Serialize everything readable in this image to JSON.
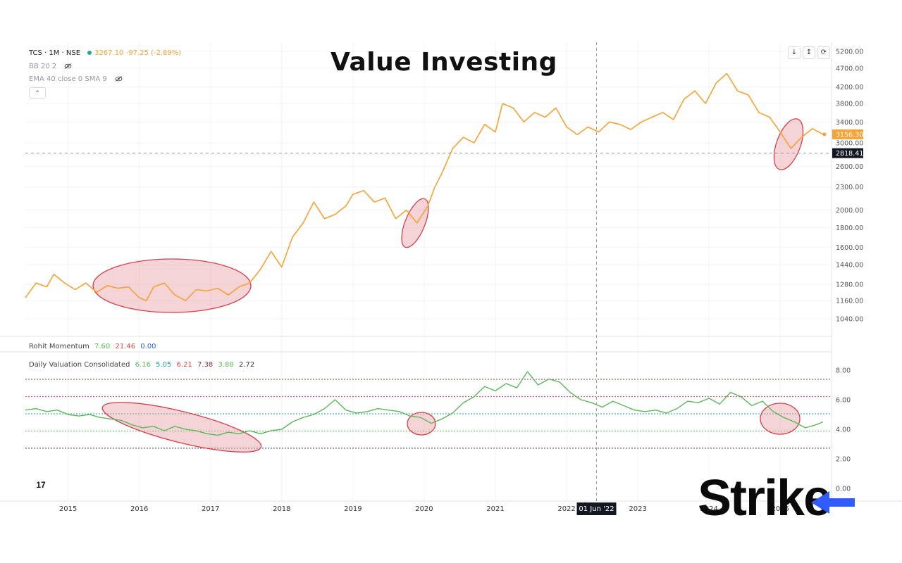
{
  "title": "Value Investing",
  "price_legend": {
    "symbol": "TCS · 1M · NSE",
    "ohlc": "3267.10 -97.25 (-2.89%)",
    "bb": "BB 20 2",
    "ema": "EMA 40 close 0 SMA 9"
  },
  "momentum_legend": {
    "name": "Rohit Momentum",
    "v1": "7.60",
    "v2": "21.46",
    "v3": "0.00"
  },
  "valuation_legend": {
    "name": "Daily Valuation Consolidated",
    "v1": "6.16",
    "v2": "5.05",
    "v3": "6.21",
    "v4": "7.38",
    "v5": "3.88",
    "v6": "2.72"
  },
  "crosshair_date": "01 Jun '22",
  "brand": "Strike",
  "colors": {
    "price": "#f7a234",
    "indicator": "#5cb85c",
    "highlight": "#e8a0a8",
    "highlight_stroke": "#d9404a",
    "grid": "#f0f3fa"
  },
  "chart_data": [
    {
      "type": "line",
      "name": "TCS price",
      "ylim": [
        1000,
        5200
      ],
      "y_scale": "log",
      "x_ticks": [
        "2015",
        "2016",
        "2017",
        "2018",
        "2019",
        "2020",
        "2021",
        "2022",
        "2023",
        "2024",
        "2025"
      ],
      "y_ticks": [
        "5200.00",
        "4700.00",
        "4200.00",
        "3800.00",
        "3400.00",
        "3000.00",
        "2600.00",
        "2300.00",
        "2000.00",
        "1800.00",
        "1600.00",
        "1440.00",
        "1280.00",
        "1160.00",
        "1040.00"
      ],
      "last_price_label": "3156.30",
      "crosshair_price_label": "2818.41",
      "x": [
        2014.4,
        2014.55,
        2014.7,
        2014.8,
        2014.95,
        2015.1,
        2015.25,
        2015.4,
        2015.55,
        2015.7,
        2015.85,
        2016.0,
        2016.1,
        2016.2,
        2016.35,
        2016.5,
        2016.65,
        2016.8,
        2016.95,
        2017.1,
        2017.25,
        2017.4,
        2017.55,
        2017.7,
        2017.85,
        2018.0,
        2018.15,
        2018.3,
        2018.45,
        2018.6,
        2018.75,
        2018.9,
        2019.0,
        2019.15,
        2019.3,
        2019.45,
        2019.6,
        2019.75,
        2019.9,
        2020.05,
        2020.15,
        2020.25,
        2020.4,
        2020.55,
        2020.7,
        2020.85,
        2021.0,
        2021.1,
        2021.25,
        2021.4,
        2021.55,
        2021.7,
        2021.85,
        2022.0,
        2022.15,
        2022.3,
        2022.45,
        2022.6,
        2022.75,
        2022.9,
        2023.05,
        2023.2,
        2023.35,
        2023.5,
        2023.65,
        2023.8,
        2023.95,
        2024.1,
        2024.25,
        2024.4,
        2024.55,
        2024.7,
        2024.85,
        2025.0,
        2025.15,
        2025.3,
        2025.45,
        2025.6
      ],
      "values": [
        1180,
        1290,
        1260,
        1360,
        1290,
        1240,
        1290,
        1220,
        1270,
        1250,
        1260,
        1180,
        1160,
        1260,
        1290,
        1200,
        1160,
        1240,
        1230,
        1250,
        1200,
        1260,
        1290,
        1400,
        1560,
        1420,
        1700,
        1850,
        2100,
        1900,
        1950,
        2050,
        2200,
        2250,
        2100,
        2150,
        1900,
        2000,
        1850,
        2050,
        2300,
        2500,
        2900,
        3100,
        3000,
        3350,
        3200,
        3800,
        3700,
        3400,
        3600,
        3500,
        3700,
        3300,
        3150,
        3300,
        3200,
        3400,
        3350,
        3250,
        3400,
        3500,
        3600,
        3450,
        3900,
        4100,
        3800,
        4300,
        4550,
        4100,
        4000,
        3600,
        3500,
        3200,
        2900,
        3100,
        3267,
        3156
      ]
    },
    {
      "type": "line",
      "name": "Daily Valuation Consolidated",
      "ylim": [
        0,
        8.5
      ],
      "y_ticks": [
        "8.00",
        "6.00",
        "4.00",
        "2.00",
        "0.00"
      ],
      "levels": [
        7.38,
        6.21,
        5.05,
        3.88,
        2.72
      ],
      "x": [
        2014.4,
        2014.55,
        2014.7,
        2014.85,
        2015.0,
        2015.15,
        2015.3,
        2015.45,
        2015.6,
        2015.75,
        2015.9,
        2016.05,
        2016.2,
        2016.35,
        2016.5,
        2016.65,
        2016.8,
        2016.95,
        2017.1,
        2017.25,
        2017.4,
        2017.55,
        2017.7,
        2017.85,
        2018.0,
        2018.15,
        2018.3,
        2018.45,
        2018.6,
        2018.75,
        2018.9,
        2019.05,
        2019.2,
        2019.35,
        2019.5,
        2019.65,
        2019.8,
        2019.95,
        2020.1,
        2020.25,
        2020.4,
        2020.55,
        2020.7,
        2020.85,
        2021.0,
        2021.15,
        2021.3,
        2021.45,
        2021.6,
        2021.75,
        2021.9,
        2022.05,
        2022.2,
        2022.35,
        2022.5,
        2022.65,
        2022.8,
        2022.95,
        2023.1,
        2023.25,
        2023.4,
        2023.55,
        2023.7,
        2023.85,
        2024.0,
        2024.15,
        2024.3,
        2024.45,
        2024.6,
        2024.75,
        2024.9,
        2025.05,
        2025.2,
        2025.35,
        2025.5,
        2025.6
      ],
      "values": [
        5.3,
        5.4,
        5.2,
        5.3,
        5.0,
        4.9,
        5.0,
        4.8,
        4.7,
        4.6,
        4.3,
        4.1,
        4.2,
        3.9,
        4.2,
        4.0,
        3.9,
        3.7,
        3.6,
        3.8,
        3.7,
        3.9,
        3.7,
        3.9,
        4.0,
        4.5,
        4.8,
        5.0,
        5.4,
        6.0,
        5.3,
        5.1,
        5.2,
        5.4,
        5.3,
        5.2,
        4.9,
        4.8,
        4.4,
        4.7,
        5.1,
        5.8,
        6.2,
        6.9,
        6.6,
        7.1,
        6.8,
        7.9,
        7.0,
        7.4,
        7.2,
        6.5,
        6.0,
        5.8,
        5.5,
        5.9,
        5.6,
        5.3,
        5.2,
        5.3,
        5.1,
        5.4,
        5.9,
        5.8,
        6.1,
        5.7,
        6.5,
        6.2,
        5.6,
        5.9,
        5.2,
        4.8,
        4.5,
        4.1,
        4.3,
        4.5
      ]
    }
  ]
}
